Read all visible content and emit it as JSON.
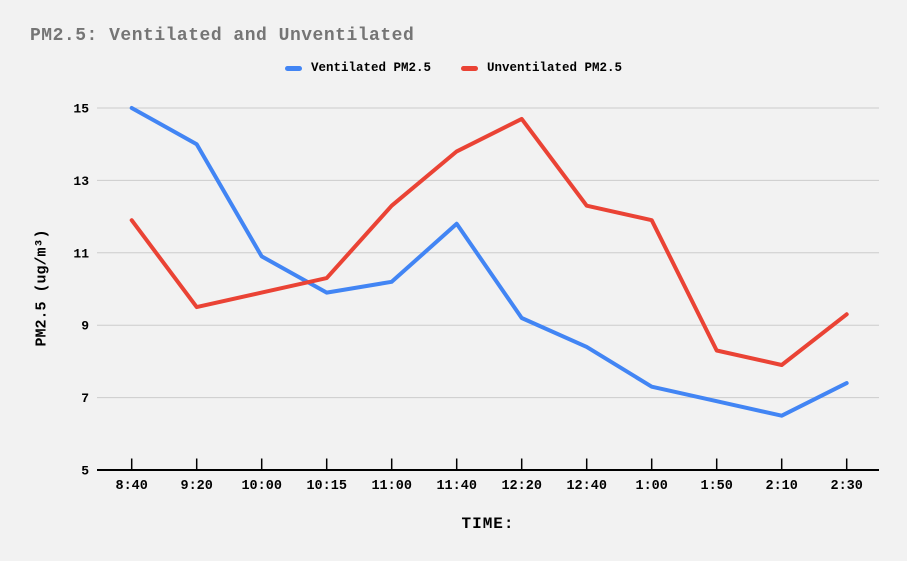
{
  "chart_data": {
    "type": "line",
    "title": "PM2.5: Ventilated and Unventilated",
    "categories": [
      "8:40",
      "9:20",
      "10:00",
      "10:15",
      "11:00",
      "11:40",
      "12:20",
      "12:40",
      "1:00",
      "1:50",
      "2:10",
      "2:30"
    ],
    "series": [
      {
        "name": "Ventilated PM2.5",
        "color": "#4285f4",
        "values": [
          15.0,
          14.0,
          10.9,
          9.9,
          10.2,
          11.8,
          9.2,
          8.4,
          7.3,
          6.9,
          6.5,
          7.4
        ]
      },
      {
        "name": "Unventilated PM2.5",
        "color": "#ea4335",
        "values": [
          11.9,
          9.5,
          9.9,
          10.3,
          12.3,
          13.8,
          14.7,
          12.3,
          11.9,
          8.3,
          7.9,
          9.3
        ]
      }
    ],
    "xlabel": "TIME:",
    "ylabel": "PM2.5 (ug/m³)",
    "ylim": [
      5,
      15
    ],
    "yticks": [
      5,
      7,
      9,
      11,
      13,
      15
    ],
    "grid": true,
    "legend_position": "top"
  },
  "colors": {
    "background": "#f2f2f2",
    "gridline": "#cccccc",
    "axis": "#000000",
    "title_text": "#757575",
    "tick_text": "#000000"
  }
}
